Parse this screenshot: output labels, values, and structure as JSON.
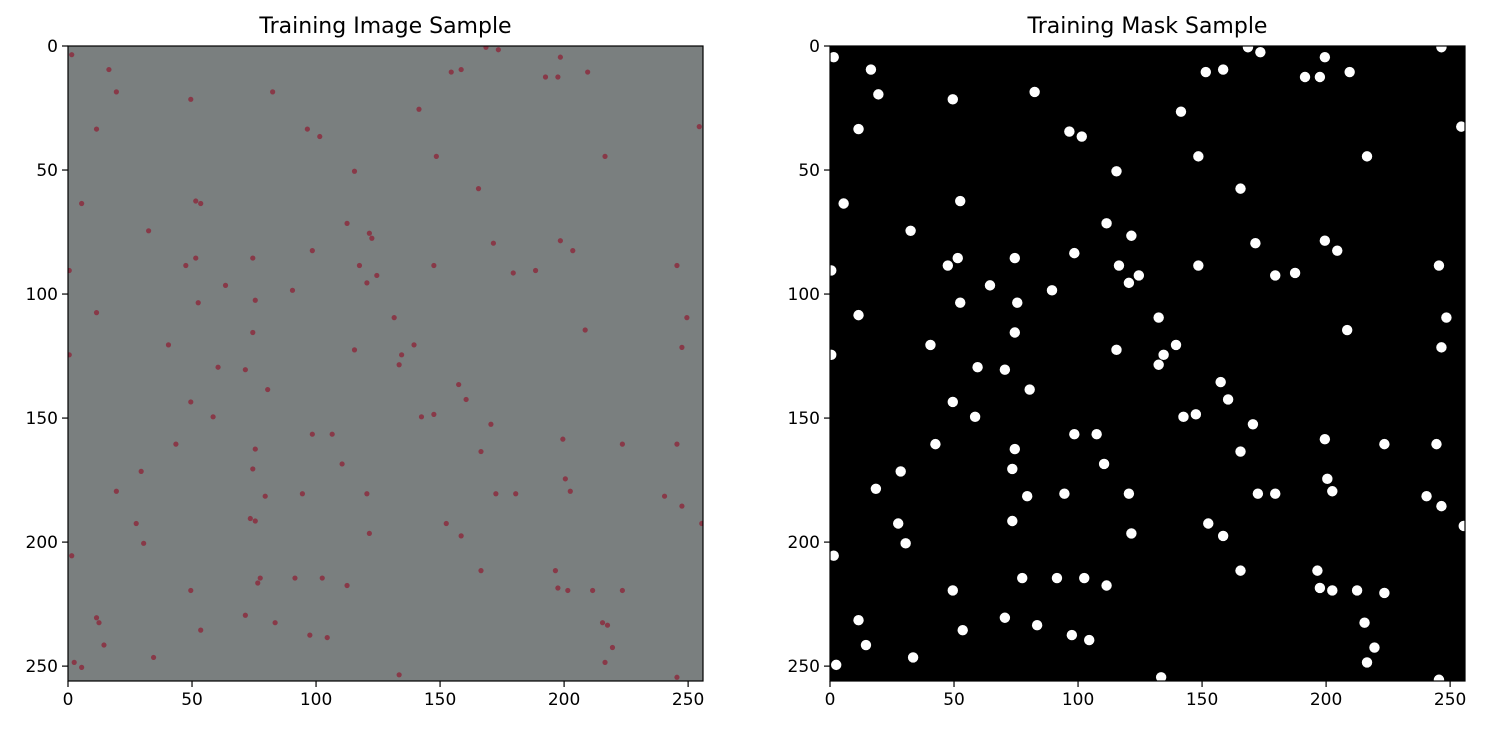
{
  "chart_data": [
    {
      "type": "image",
      "title": "Training Image Sample",
      "xlim": [
        0,
        256
      ],
      "ylim": [
        256,
        0
      ],
      "xticks": [
        0,
        50,
        100,
        150,
        200,
        250
      ],
      "yticks": [
        0,
        50,
        100,
        150,
        200,
        250
      ],
      "background_color": "#7a7f7f",
      "marker_color": "#8b2d3e",
      "points": [
        [
          1,
          3
        ],
        [
          16,
          9
        ],
        [
          19,
          18
        ],
        [
          49,
          21
        ],
        [
          82,
          18
        ],
        [
          11,
          33
        ],
        [
          96,
          33
        ],
        [
          101,
          36
        ],
        [
          141,
          25
        ],
        [
          154,
          10
        ],
        [
          158,
          9
        ],
        [
          168,
          0
        ],
        [
          173,
          1
        ],
        [
          192,
          12
        ],
        [
          197,
          12
        ],
        [
          198,
          4
        ],
        [
          209,
          10
        ],
        [
          216,
          44
        ],
        [
          148,
          44
        ],
        [
          115,
          50
        ],
        [
          5,
          63
        ],
        [
          51,
          62
        ],
        [
          53,
          63
        ],
        [
          32,
          74
        ],
        [
          112,
          71
        ],
        [
          121,
          75
        ],
        [
          122,
          77
        ],
        [
          165,
          57
        ],
        [
          171,
          79
        ],
        [
          198,
          78
        ],
        [
          203,
          82
        ],
        [
          98,
          82
        ],
        [
          47,
          88
        ],
        [
          51,
          85
        ],
        [
          74,
          85
        ],
        [
          117,
          88
        ],
        [
          124,
          92
        ],
        [
          120,
          95
        ],
        [
          147,
          88
        ],
        [
          179,
          91
        ],
        [
          188,
          90
        ],
        [
          245,
          88
        ],
        [
          63,
          96
        ],
        [
          90,
          98
        ],
        [
          52,
          103
        ],
        [
          75,
          102
        ],
        [
          11,
          107
        ],
        [
          131,
          109
        ],
        [
          74,
          115
        ],
        [
          208,
          114
        ],
        [
          249,
          109
        ],
        [
          40,
          120
        ],
        [
          115,
          122
        ],
        [
          139,
          120
        ],
        [
          134,
          124
        ],
        [
          133,
          128
        ],
        [
          247,
          121
        ],
        [
          60,
          129
        ],
        [
          71,
          130
        ],
        [
          80,
          138
        ],
        [
          157,
          136
        ],
        [
          160,
          142
        ],
        [
          49,
          143
        ],
        [
          58,
          149
        ],
        [
          142,
          149
        ],
        [
          147,
          148
        ],
        [
          43,
          160
        ],
        [
          98,
          156
        ],
        [
          106,
          156
        ],
        [
          170,
          152
        ],
        [
          199,
          158
        ],
        [
          75,
          162
        ],
        [
          74,
          170
        ],
        [
          110,
          168
        ],
        [
          166,
          163
        ],
        [
          223,
          160
        ],
        [
          245,
          160
        ],
        [
          29,
          171
        ],
        [
          19,
          179
        ],
        [
          79,
          181
        ],
        [
          94,
          180
        ],
        [
          120,
          180
        ],
        [
          172,
          180
        ],
        [
          180,
          180
        ],
        [
          200,
          174
        ],
        [
          202,
          179
        ],
        [
          240,
          181
        ],
        [
          247,
          185
        ],
        [
          27,
          192
        ],
        [
          30,
          200
        ],
        [
          73,
          190
        ],
        [
          75,
          191
        ],
        [
          121,
          196
        ],
        [
          152,
          192
        ],
        [
          158,
          197
        ],
        [
          255,
          192
        ],
        [
          1,
          205
        ],
        [
          77,
          214
        ],
        [
          76,
          216
        ],
        [
          91,
          214
        ],
        [
          102,
          214
        ],
        [
          112,
          217
        ],
        [
          166,
          211
        ],
        [
          196,
          211
        ],
        [
          197,
          218
        ],
        [
          201,
          219
        ],
        [
          49,
          219
        ],
        [
          211,
          219
        ],
        [
          223,
          219
        ],
        [
          11,
          230
        ],
        [
          12,
          232
        ],
        [
          71,
          229
        ],
        [
          83,
          232
        ],
        [
          97,
          237
        ],
        [
          104,
          238
        ],
        [
          53,
          235
        ],
        [
          215,
          232
        ],
        [
          217,
          233
        ],
        [
          219,
          242
        ],
        [
          216,
          248
        ],
        [
          14,
          241
        ],
        [
          34,
          246
        ],
        [
          2,
          248
        ],
        [
          5,
          250
        ],
        [
          133,
          253
        ],
        [
          245,
          254
        ],
        [
          254,
          32
        ],
        [
          0,
          90
        ],
        [
          0,
          124
        ]
      ]
    },
    {
      "type": "image",
      "title": "Training Mask Sample",
      "xlim": [
        0,
        256
      ],
      "ylim": [
        256,
        0
      ],
      "xticks": [
        0,
        50,
        100,
        150,
        200,
        250
      ],
      "yticks": [
        0,
        50,
        100,
        150,
        200,
        250
      ],
      "background_color": "#000000",
      "marker_color": "#ffffff",
      "points": [
        [
          1,
          4
        ],
        [
          16,
          9
        ],
        [
          19,
          19
        ],
        [
          49,
          21
        ],
        [
          82,
          18
        ],
        [
          11,
          33
        ],
        [
          96,
          34
        ],
        [
          101,
          36
        ],
        [
          141,
          26
        ],
        [
          151,
          10
        ],
        [
          158,
          9
        ],
        [
          168,
          0
        ],
        [
          173,
          2
        ],
        [
          191,
          12
        ],
        [
          197,
          12
        ],
        [
          199,
          4
        ],
        [
          209,
          10
        ],
        [
          216,
          44
        ],
        [
          148,
          44
        ],
        [
          115,
          50
        ],
        [
          5,
          63
        ],
        [
          52,
          62
        ],
        [
          32,
          74
        ],
        [
          111,
          71
        ],
        [
          121,
          76
        ],
        [
          165,
          57
        ],
        [
          171,
          79
        ],
        [
          199,
          78
        ],
        [
          204,
          82
        ],
        [
          98,
          83
        ],
        [
          47,
          88
        ],
        [
          51,
          85
        ],
        [
          74,
          85
        ],
        [
          116,
          88
        ],
        [
          124,
          92
        ],
        [
          120,
          95
        ],
        [
          148,
          88
        ],
        [
          179,
          92
        ],
        [
          187,
          91
        ],
        [
          245,
          88
        ],
        [
          64,
          96
        ],
        [
          89,
          98
        ],
        [
          52,
          103
        ],
        [
          75,
          103
        ],
        [
          11,
          108
        ],
        [
          132,
          109
        ],
        [
          74,
          115
        ],
        [
          208,
          114
        ],
        [
          248,
          109
        ],
        [
          40,
          120
        ],
        [
          115,
          122
        ],
        [
          139,
          120
        ],
        [
          134,
          124
        ],
        [
          132,
          128
        ],
        [
          246,
          121
        ],
        [
          59,
          129
        ],
        [
          70,
          130
        ],
        [
          80,
          138
        ],
        [
          157,
          135
        ],
        [
          160,
          142
        ],
        [
          49,
          143
        ],
        [
          58,
          149
        ],
        [
          142,
          149
        ],
        [
          147,
          148
        ],
        [
          42,
          160
        ],
        [
          98,
          156
        ],
        [
          107,
          156
        ],
        [
          170,
          152
        ],
        [
          199,
          158
        ],
        [
          74,
          162
        ],
        [
          73,
          170
        ],
        [
          110,
          168
        ],
        [
          165,
          163
        ],
        [
          223,
          160
        ],
        [
          244,
          160
        ],
        [
          28,
          171
        ],
        [
          18,
          178
        ],
        [
          79,
          181
        ],
        [
          94,
          180
        ],
        [
          120,
          180
        ],
        [
          172,
          180
        ],
        [
          179,
          180
        ],
        [
          200,
          174
        ],
        [
          202,
          179
        ],
        [
          240,
          181
        ],
        [
          246,
          185
        ],
        [
          27,
          192
        ],
        [
          30,
          200
        ],
        [
          73,
          191
        ],
        [
          121,
          196
        ],
        [
          152,
          192
        ],
        [
          158,
          197
        ],
        [
          255,
          193
        ],
        [
          1,
          205
        ],
        [
          77,
          214
        ],
        [
          91,
          214
        ],
        [
          102,
          214
        ],
        [
          111,
          217
        ],
        [
          165,
          211
        ],
        [
          196,
          211
        ],
        [
          197,
          218
        ],
        [
          202,
          219
        ],
        [
          49,
          219
        ],
        [
          212,
          219
        ],
        [
          223,
          220
        ],
        [
          11,
          231
        ],
        [
          70,
          230
        ],
        [
          83,
          233
        ],
        [
          97,
          237
        ],
        [
          104,
          239
        ],
        [
          53,
          235
        ],
        [
          215,
          232
        ],
        [
          219,
          242
        ],
        [
          216,
          248
        ],
        [
          14,
          241
        ],
        [
          33,
          246
        ],
        [
          2,
          249
        ],
        [
          133,
          254
        ],
        [
          245,
          255
        ],
        [
          246,
          0
        ],
        [
          254,
          32
        ],
        [
          0,
          90
        ],
        [
          0,
          124
        ]
      ]
    }
  ]
}
